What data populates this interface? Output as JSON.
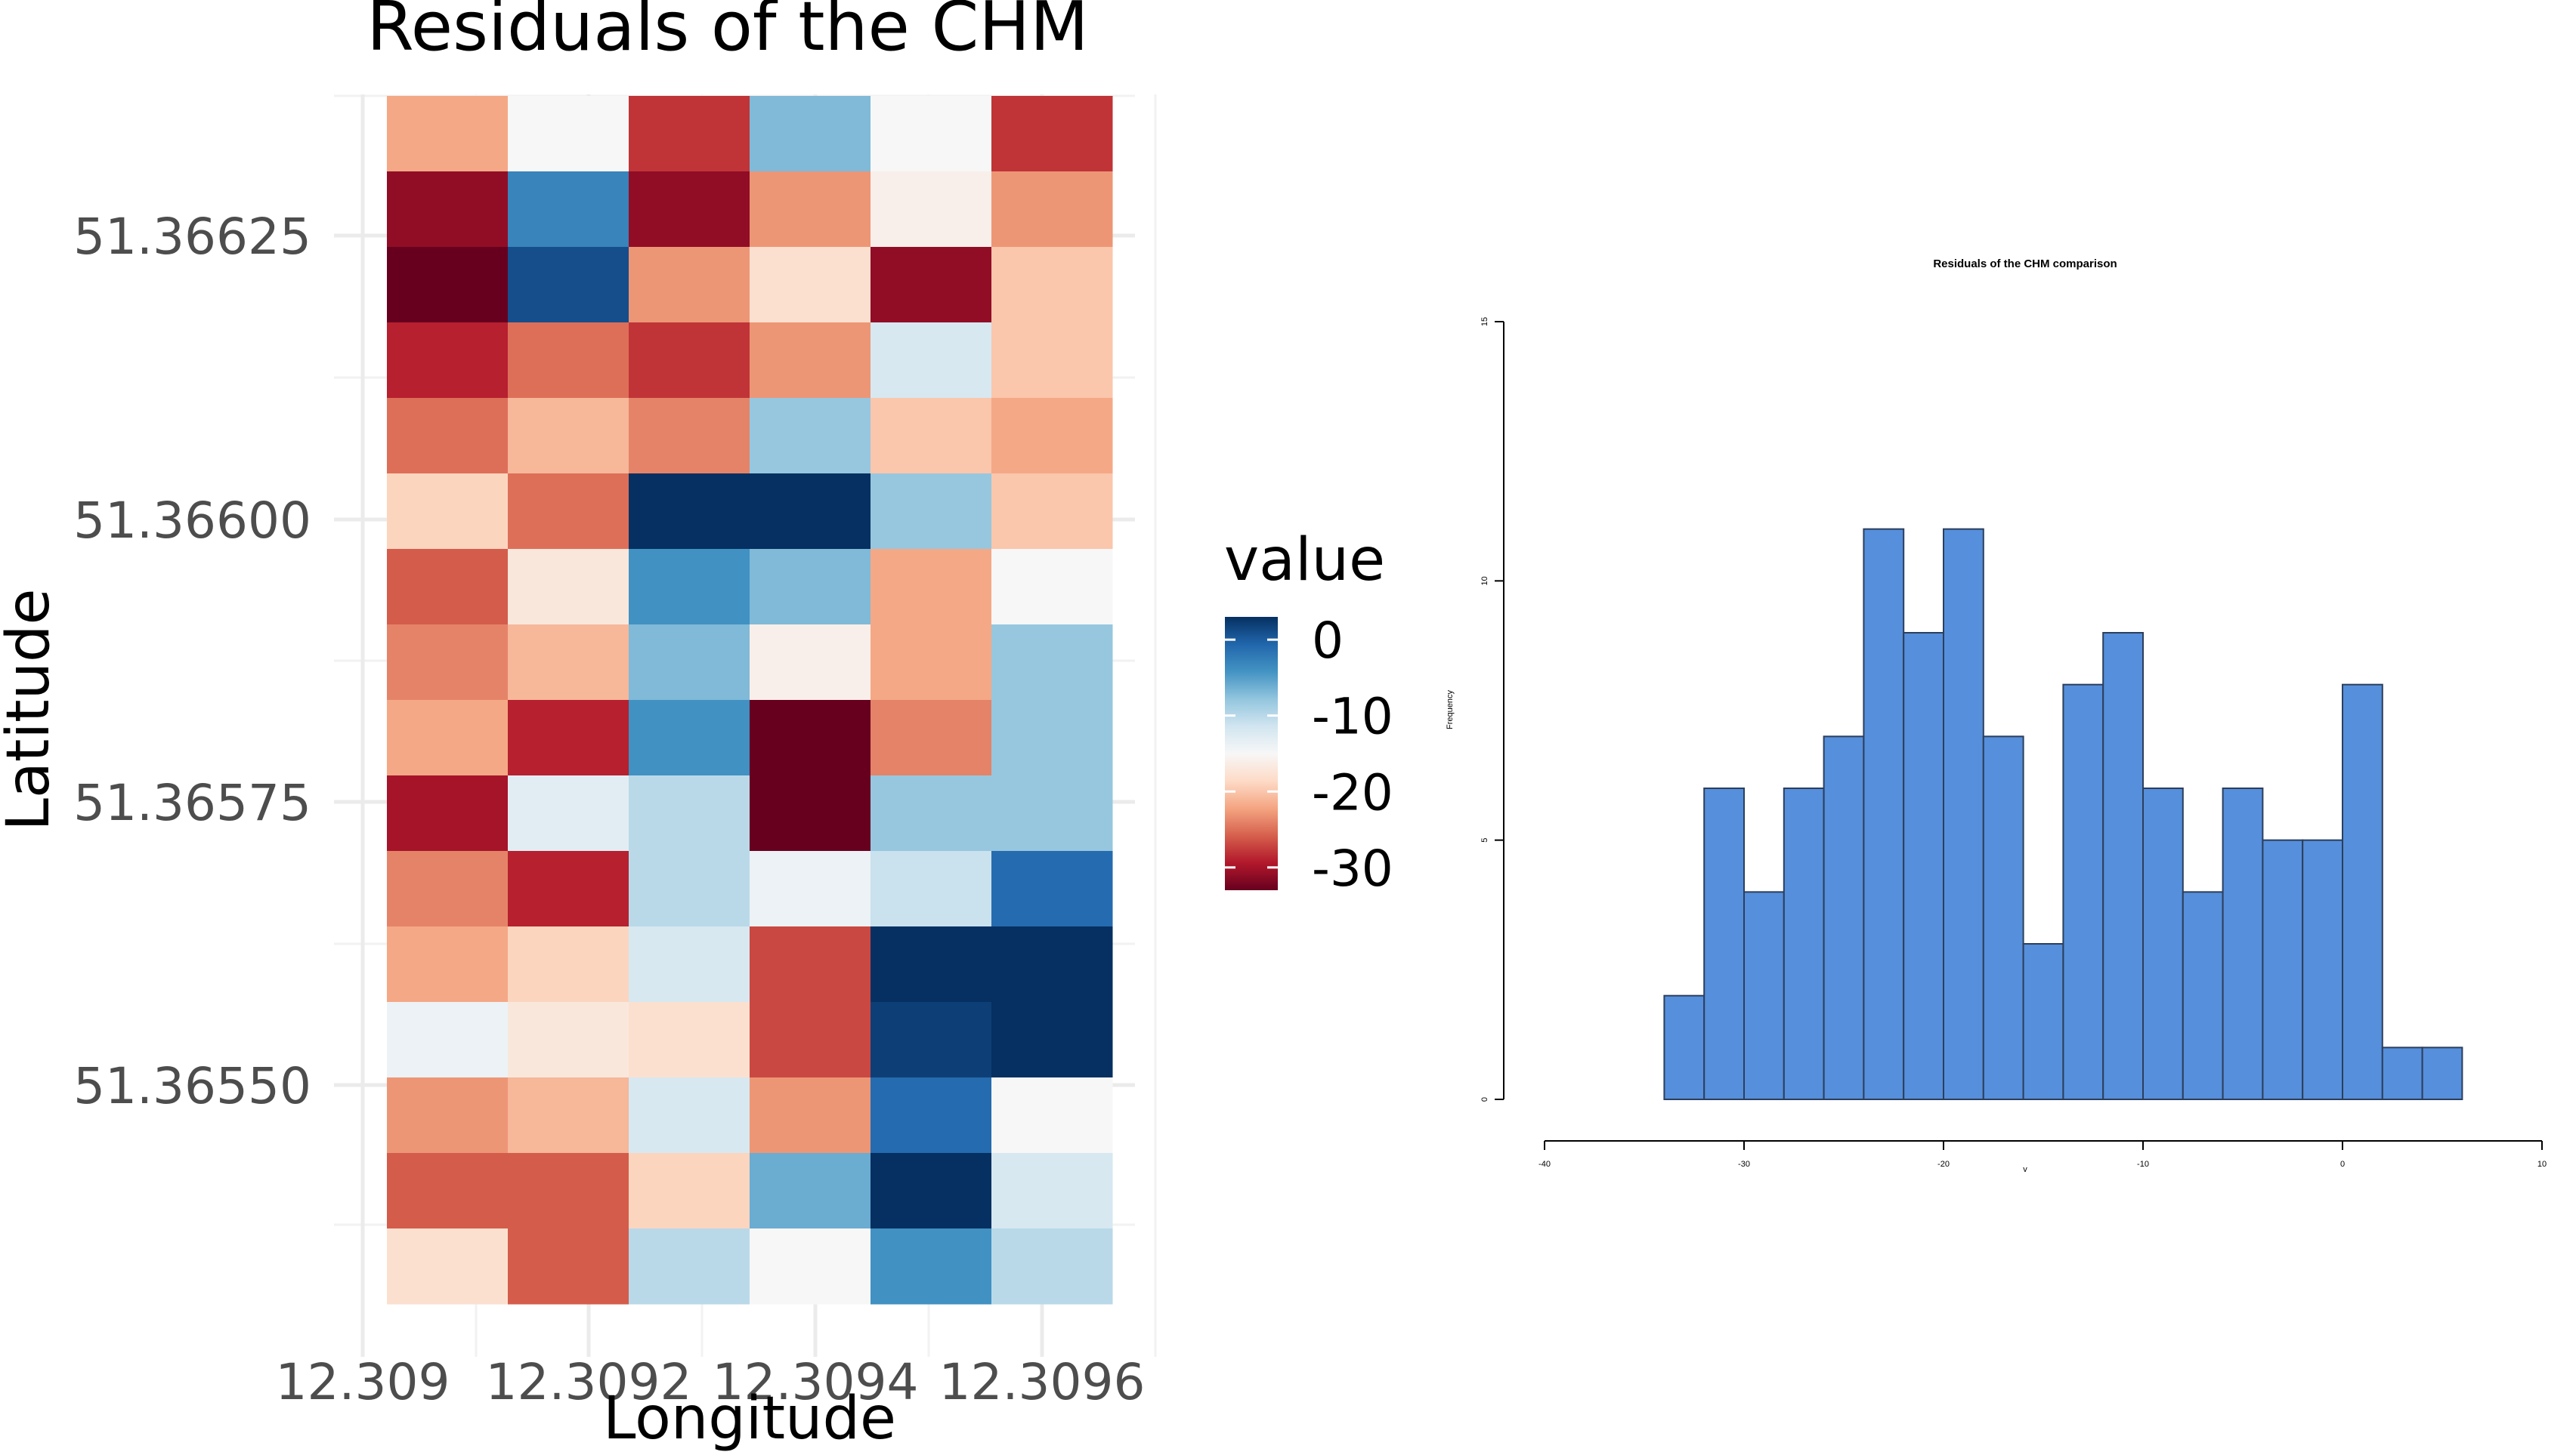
{
  "chart_data": [
    {
      "type": "heatmap",
      "title": "Residuals of the CHM",
      "xlabel": "Longitude",
      "ylabel": "Latitude",
      "x_ticks": [
        "12.309",
        "12.3092",
        "12.3094",
        "12.3096"
      ],
      "y_ticks": [
        "51.36625",
        "51.36600",
        "51.36575",
        "51.36550"
      ],
      "legend": {
        "title": "value",
        "ticks": [
          "0",
          "-10",
          "-20",
          "-30"
        ],
        "placement": "right",
        "colors": [
          "#053061",
          "#2166ac",
          "#4393c3",
          "#92c5de",
          "#d1e5f0",
          "#f7f7f7",
          "#fddbc7",
          "#f4a582",
          "#d6604d",
          "#b2182b",
          "#67001f"
        ],
        "range": [
          -33,
          3
        ]
      },
      "columns": 6,
      "rows": 16,
      "values": [
        [
          -22,
          -15,
          -28,
          -7,
          -15,
          -28
        ],
        [
          -31,
          -3,
          -31,
          -23,
          -16,
          -23
        ],
        [
          -33,
          1,
          -23,
          -18,
          -31,
          -20
        ],
        [
          -29,
          -25,
          -28,
          -23,
          -12,
          -20
        ],
        [
          -25,
          -21,
          -24,
          -8,
          -20,
          -22
        ],
        [
          -19,
          -25,
          6,
          3,
          -8,
          -20
        ],
        [
          -26,
          -17,
          -4,
          -7,
          -22,
          -15
        ],
        [
          -24,
          -21,
          -7,
          -16,
          -22,
          -8
        ],
        [
          -22,
          -29,
          -4,
          -33,
          -24,
          -8
        ],
        [
          -30,
          -13,
          -10,
          -33,
          -8,
          -8
        ],
        [
          -24,
          -29,
          -10,
          -14,
          -11,
          -1
        ],
        [
          -22,
          -19,
          -12,
          -27,
          4,
          6
        ],
        [
          -14,
          -17,
          -18,
          -27,
          2,
          6
        ],
        [
          -23,
          -21,
          -12,
          -23,
          -1,
          -15
        ],
        [
          -26,
          -26,
          -19,
          -6,
          7,
          -12
        ],
        [
          -18,
          -26,
          -10,
          -15,
          -4,
          -10
        ]
      ]
    },
    {
      "type": "bar",
      "title": "Residuals of the CHM comparison",
      "xlabel": "v",
      "ylabel": "Frequency",
      "bin_width": 2,
      "x": [
        -33,
        -31,
        -29,
        -27,
        -25,
        -23,
        -21,
        -19,
        -17,
        -15,
        -13,
        -11,
        -9,
        -7,
        -5,
        -3,
        -1,
        1,
        3,
        5
      ],
      "values": [
        2,
        6,
        4,
        6,
        7,
        11,
        9,
        11,
        7,
        3,
        8,
        9,
        6,
        4,
        6,
        5,
        5,
        8,
        1,
        1
      ],
      "x_ticks": [
        "-40",
        "-30",
        "-20",
        "-10",
        "0",
        "10"
      ],
      "y_ticks": [
        "0",
        "5",
        "10",
        "15"
      ],
      "xlim": [
        -40,
        10
      ],
      "ylim": [
        0,
        15
      ],
      "bar_color": "#568fdc",
      "grid": false
    }
  ]
}
